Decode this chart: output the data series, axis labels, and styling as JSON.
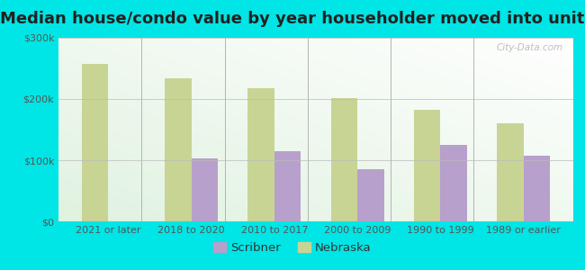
{
  "title": "Median house/condo value by year householder moved into unit",
  "categories": [
    "2021 or later",
    "2018 to 2020",
    "2010 to 2017",
    "2000 to 2009",
    "1990 to 1999",
    "1989 or earlier"
  ],
  "scribner": [
    null,
    103000,
    115000,
    85000,
    125000,
    107000
  ],
  "nebraska": [
    257000,
    234000,
    218000,
    202000,
    182000,
    160000
  ],
  "scribner_color": "#b8a0cc",
  "nebraska_color": "#c8d494",
  "background_color": "#00e5e5",
  "ylim": [
    0,
    300000
  ],
  "yticks": [
    0,
    100000,
    200000,
    300000
  ],
  "ytick_labels": [
    "$0",
    "$100k",
    "$200k",
    "$300k"
  ],
  "bar_width": 0.32,
  "title_fontsize": 13,
  "tick_fontsize": 8,
  "legend_fontsize": 9.5,
  "watermark": "City-Data.com"
}
